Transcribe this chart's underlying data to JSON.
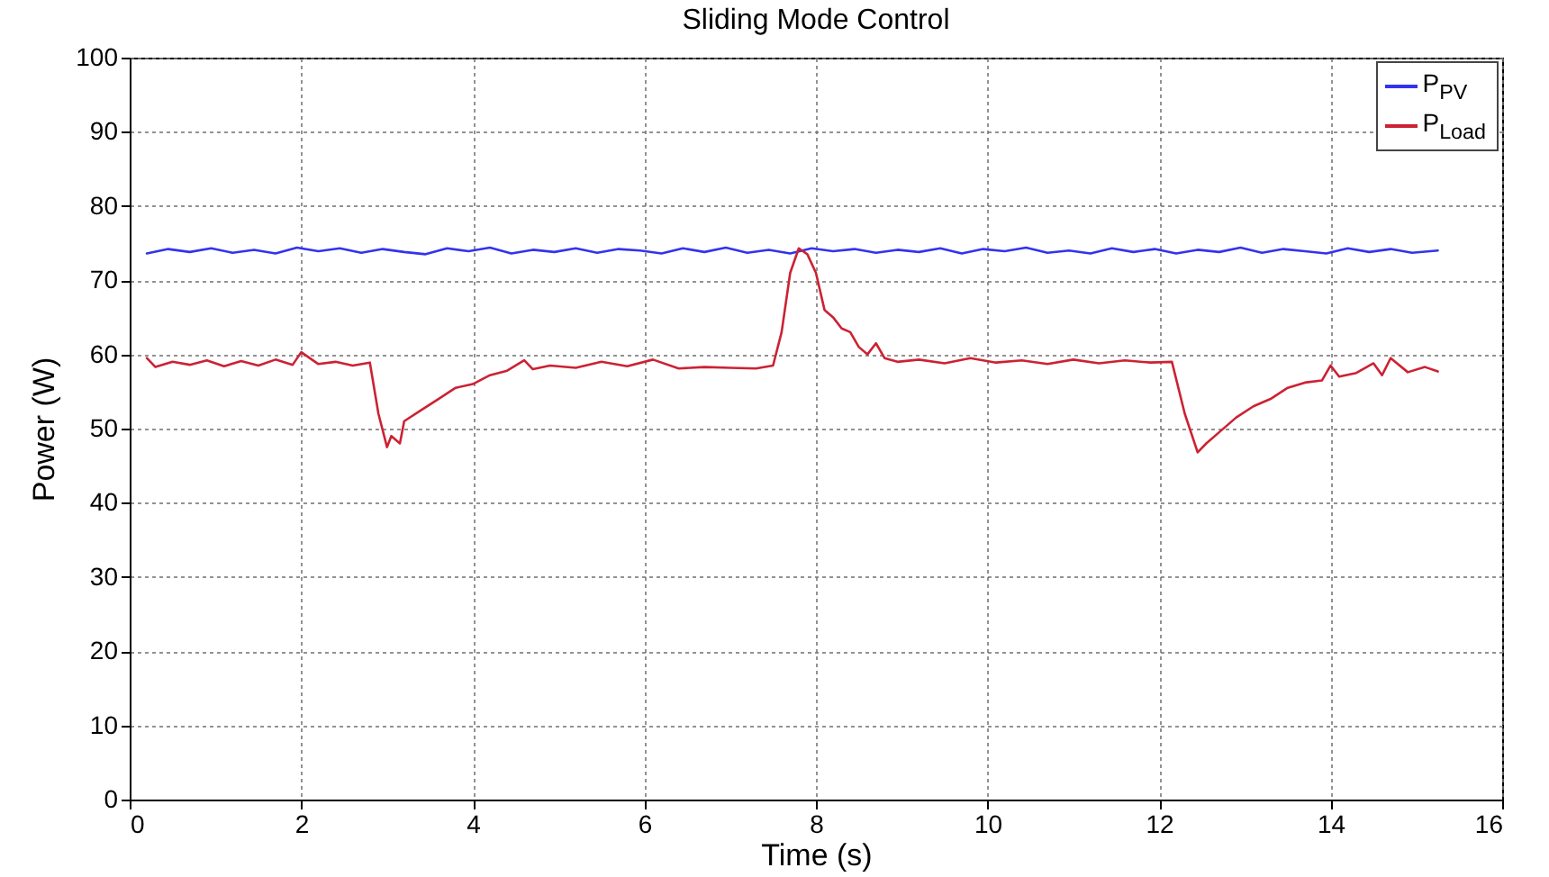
{
  "chart_data": {
    "type": "line",
    "title": "Sliding Mode Control",
    "xlabel": "Time (s)",
    "ylabel": "Power (W)",
    "xlim": [
      0,
      16
    ],
    "ylim": [
      0,
      100
    ],
    "xticks": [
      0,
      2,
      4,
      6,
      8,
      10,
      12,
      14,
      16
    ],
    "yticks": [
      0,
      10,
      20,
      30,
      40,
      50,
      60,
      70,
      80,
      90,
      100
    ],
    "grid": true,
    "legend": "top right",
    "line_style": "solid",
    "series": [
      {
        "name": "P$_{PV}$",
        "color": "#3333ee",
        "x": [
          0.2,
          0.45,
          0.7,
          0.95,
          1.2,
          1.45,
          1.7,
          1.95,
          2.2,
          2.45,
          2.7,
          2.95,
          3.2,
          3.45,
          3.7,
          3.95,
          4.2,
          4.45,
          4.7,
          4.95,
          5.2,
          5.45,
          5.7,
          5.95,
          6.2,
          6.45,
          6.7,
          6.95,
          7.2,
          7.45,
          7.7,
          7.95,
          8.2,
          8.45,
          8.7,
          8.95,
          9.2,
          9.45,
          9.7,
          9.95,
          10.2,
          10.45,
          10.7,
          10.95,
          11.2,
          11.45,
          11.7,
          11.95,
          12.2,
          12.45,
          12.7,
          12.95,
          13.2,
          13.45,
          13.7,
          13.95,
          14.2,
          14.45,
          14.7,
          14.95,
          15.25
        ],
        "values": [
          73.6,
          74.2,
          73.8,
          74.3,
          73.7,
          74.1,
          73.6,
          74.4,
          73.9,
          74.3,
          73.7,
          74.2,
          73.8,
          73.5,
          74.3,
          73.9,
          74.4,
          73.6,
          74.1,
          73.8,
          74.3,
          73.7,
          74.2,
          74.0,
          73.6,
          74.3,
          73.8,
          74.4,
          73.7,
          74.1,
          73.6,
          74.3,
          73.9,
          74.2,
          73.7,
          74.1,
          73.8,
          74.3,
          73.6,
          74.2,
          73.9,
          74.4,
          73.7,
          74.0,
          73.6,
          74.3,
          73.8,
          74.2,
          73.6,
          74.1,
          73.8,
          74.4,
          73.7,
          74.2,
          73.9,
          73.6,
          74.3,
          73.8,
          74.2,
          73.7,
          74.0
        ]
      },
      {
        "name": "P$_{Load}$",
        "color": "#cc2233",
        "x": [
          0.2,
          0.3,
          0.5,
          0.7,
          0.9,
          1.1,
          1.3,
          1.5,
          1.7,
          1.9,
          2.0,
          2.2,
          2.4,
          2.6,
          2.8,
          2.9,
          3.0,
          3.05,
          3.15,
          3.2,
          3.4,
          3.6,
          3.8,
          4.0,
          4.2,
          4.4,
          4.6,
          4.7,
          4.9,
          5.2,
          5.5,
          5.8,
          6.1,
          6.4,
          6.7,
          7.0,
          7.3,
          7.5,
          7.6,
          7.7,
          7.8,
          7.9,
          8.0,
          8.1,
          8.2,
          8.3,
          8.4,
          8.5,
          8.6,
          8.7,
          8.8,
          8.95,
          9.2,
          9.5,
          9.8,
          10.1,
          10.4,
          10.7,
          11.0,
          11.3,
          11.6,
          11.9,
          12.15,
          12.3,
          12.45,
          12.55,
          12.7,
          12.9,
          13.1,
          13.3,
          13.5,
          13.7,
          13.9,
          14.0,
          14.1,
          14.3,
          14.5,
          14.6,
          14.7,
          14.9,
          15.1,
          15.25
        ],
        "values": [
          59.5,
          58.3,
          59.0,
          58.6,
          59.2,
          58.4,
          59.1,
          58.5,
          59.3,
          58.6,
          60.3,
          58.7,
          59.0,
          58.5,
          58.9,
          52.0,
          47.5,
          49.0,
          48.0,
          51.0,
          52.5,
          54.0,
          55.5,
          56.0,
          57.2,
          57.8,
          59.2,
          58.0,
          58.5,
          58.2,
          59.0,
          58.4,
          59.3,
          58.1,
          58.3,
          58.2,
          58.1,
          58.5,
          63.0,
          71.0,
          74.3,
          73.5,
          71.0,
          66.0,
          65.0,
          63.5,
          63.0,
          61.0,
          60.0,
          61.5,
          59.5,
          59.0,
          59.3,
          58.8,
          59.5,
          58.9,
          59.2,
          58.7,
          59.3,
          58.8,
          59.2,
          58.9,
          59.0,
          52.0,
          46.8,
          48.0,
          49.5,
          51.5,
          53.0,
          54.0,
          55.5,
          56.2,
          56.5,
          58.5,
          57.0,
          57.5,
          58.8,
          57.2,
          59.5,
          57.6,
          58.3,
          57.7
        ]
      }
    ]
  }
}
